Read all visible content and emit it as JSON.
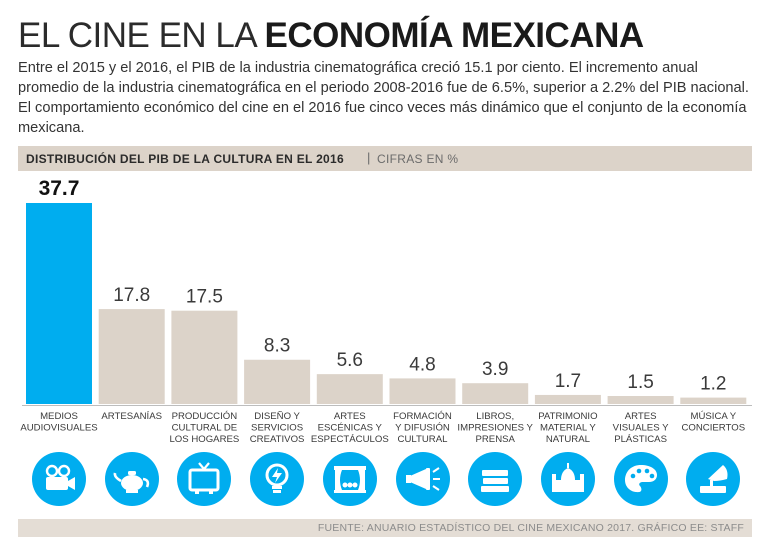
{
  "header": {
    "title_light": "EL CINE EN LA ",
    "title_bold": "ECONOMÍA MEXICANA",
    "intro": "Entre el 2015 y el 2016, el PIB de la industria cinematográfica creció 15.1 por ciento.  El incremento anual promedio de la industria cinematográfica en el periodo 2008-2016 fue de 6.5%, superior a 2.2% del PIB nacional. El comportamiento económico del cine en el 2016 fue cinco veces más dinámico que el conjunto de la economía mexicana."
  },
  "chart_data": {
    "type": "bar",
    "title": "DISTRIBUCIÓN DEL PIB DE LA CULTURA EN EL 2016",
    "unit": "CIFRAS EN %",
    "categories": [
      "MEDIOS\nAUDIOVISUALES",
      "ARTESANÍAS",
      "PRODUCCIÓN\nCULTURAL DE\nLOS HOGARES",
      "DISEÑO Y\nSERVICIOS\nCREATIVOS",
      "ARTES\nESCÉNICAS Y\nESPECTÁCULOS",
      "FORMACIÓN\nY DIFUSIÓN\nCULTURAL",
      "LIBROS,\nIMPRESIONES Y\nPRENSA",
      "PATRIMONIO\nMATERIAL Y\nNATURAL",
      "ARTES\nVISUALES Y\nPLÁSTICAS",
      "MÚSICA Y\nCONCIERTOS"
    ],
    "values": [
      37.7,
      17.8,
      17.5,
      8.3,
      5.6,
      4.8,
      3.9,
      1.7,
      1.5,
      1.2
    ],
    "value_labels": [
      "37.7",
      "17.8",
      "17.5",
      "8.3",
      "5.6",
      "4.8",
      "3.9",
      "1.7",
      "1.5",
      "1.2"
    ],
    "highlight_index": 0,
    "ylim": [
      0,
      37.7
    ],
    "grid": false,
    "legend": "none",
    "colors": {
      "highlight": "#00adef",
      "bar": "#dcd3c9",
      "value_text": "#3a3a3a",
      "highlight_text": "#111111",
      "category_text": "#3a3a3a"
    }
  },
  "icons": [
    "film-camera-icon",
    "teapot-icon",
    "television-icon",
    "lightbulb-icon",
    "theater-stage-icon",
    "megaphone-icon",
    "books-icon",
    "monument-building-icon",
    "paint-palette-icon",
    "gramophone-icon"
  ],
  "icon_color": "#00adef",
  "footer": {
    "source": "FUENTE: ANUARIO ESTADÍSTICO DEL CINE MEXICANO 2017.  GRÁFICO EE: STAFF"
  }
}
